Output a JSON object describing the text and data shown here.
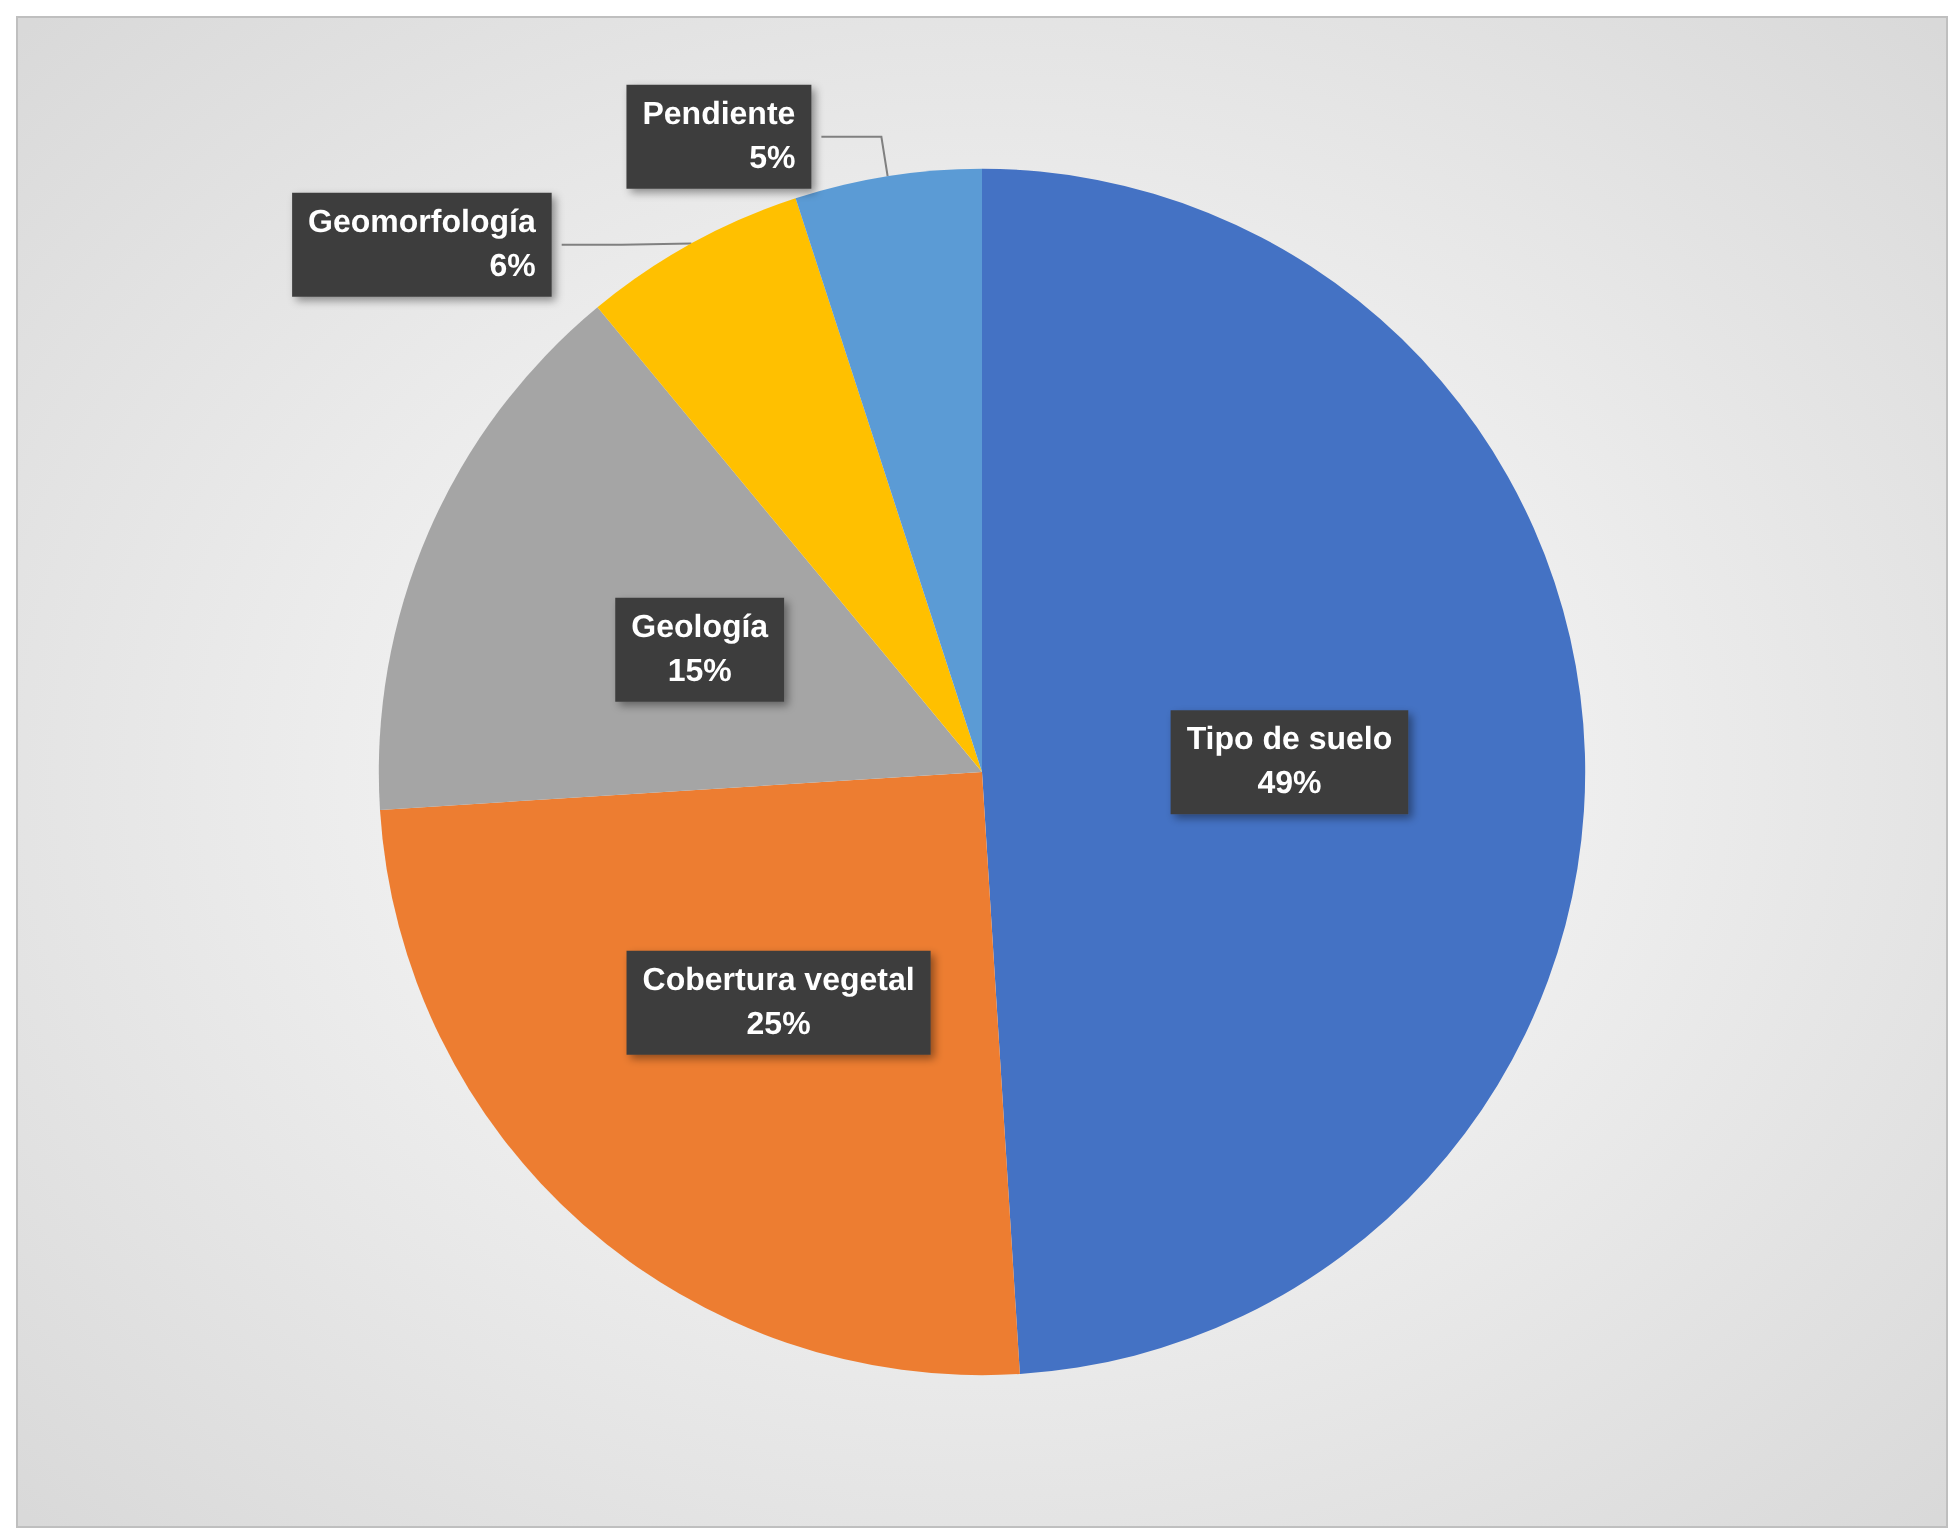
{
  "chart_data": {
    "type": "pie",
    "categories": [
      "Tipo de suelo",
      "Cobertura vegetal",
      "Geología",
      "Geomorfología",
      "Pendiente"
    ],
    "values": [
      49,
      25,
      15,
      6,
      5
    ],
    "colors": [
      "#4472c4",
      "#ed7d31",
      "#a5a5a5",
      "#ffc000",
      "#5b9bd5"
    ],
    "value_labels": [
      "49%",
      "25%",
      "15%",
      "6%",
      "5%"
    ],
    "legend": false
  }
}
